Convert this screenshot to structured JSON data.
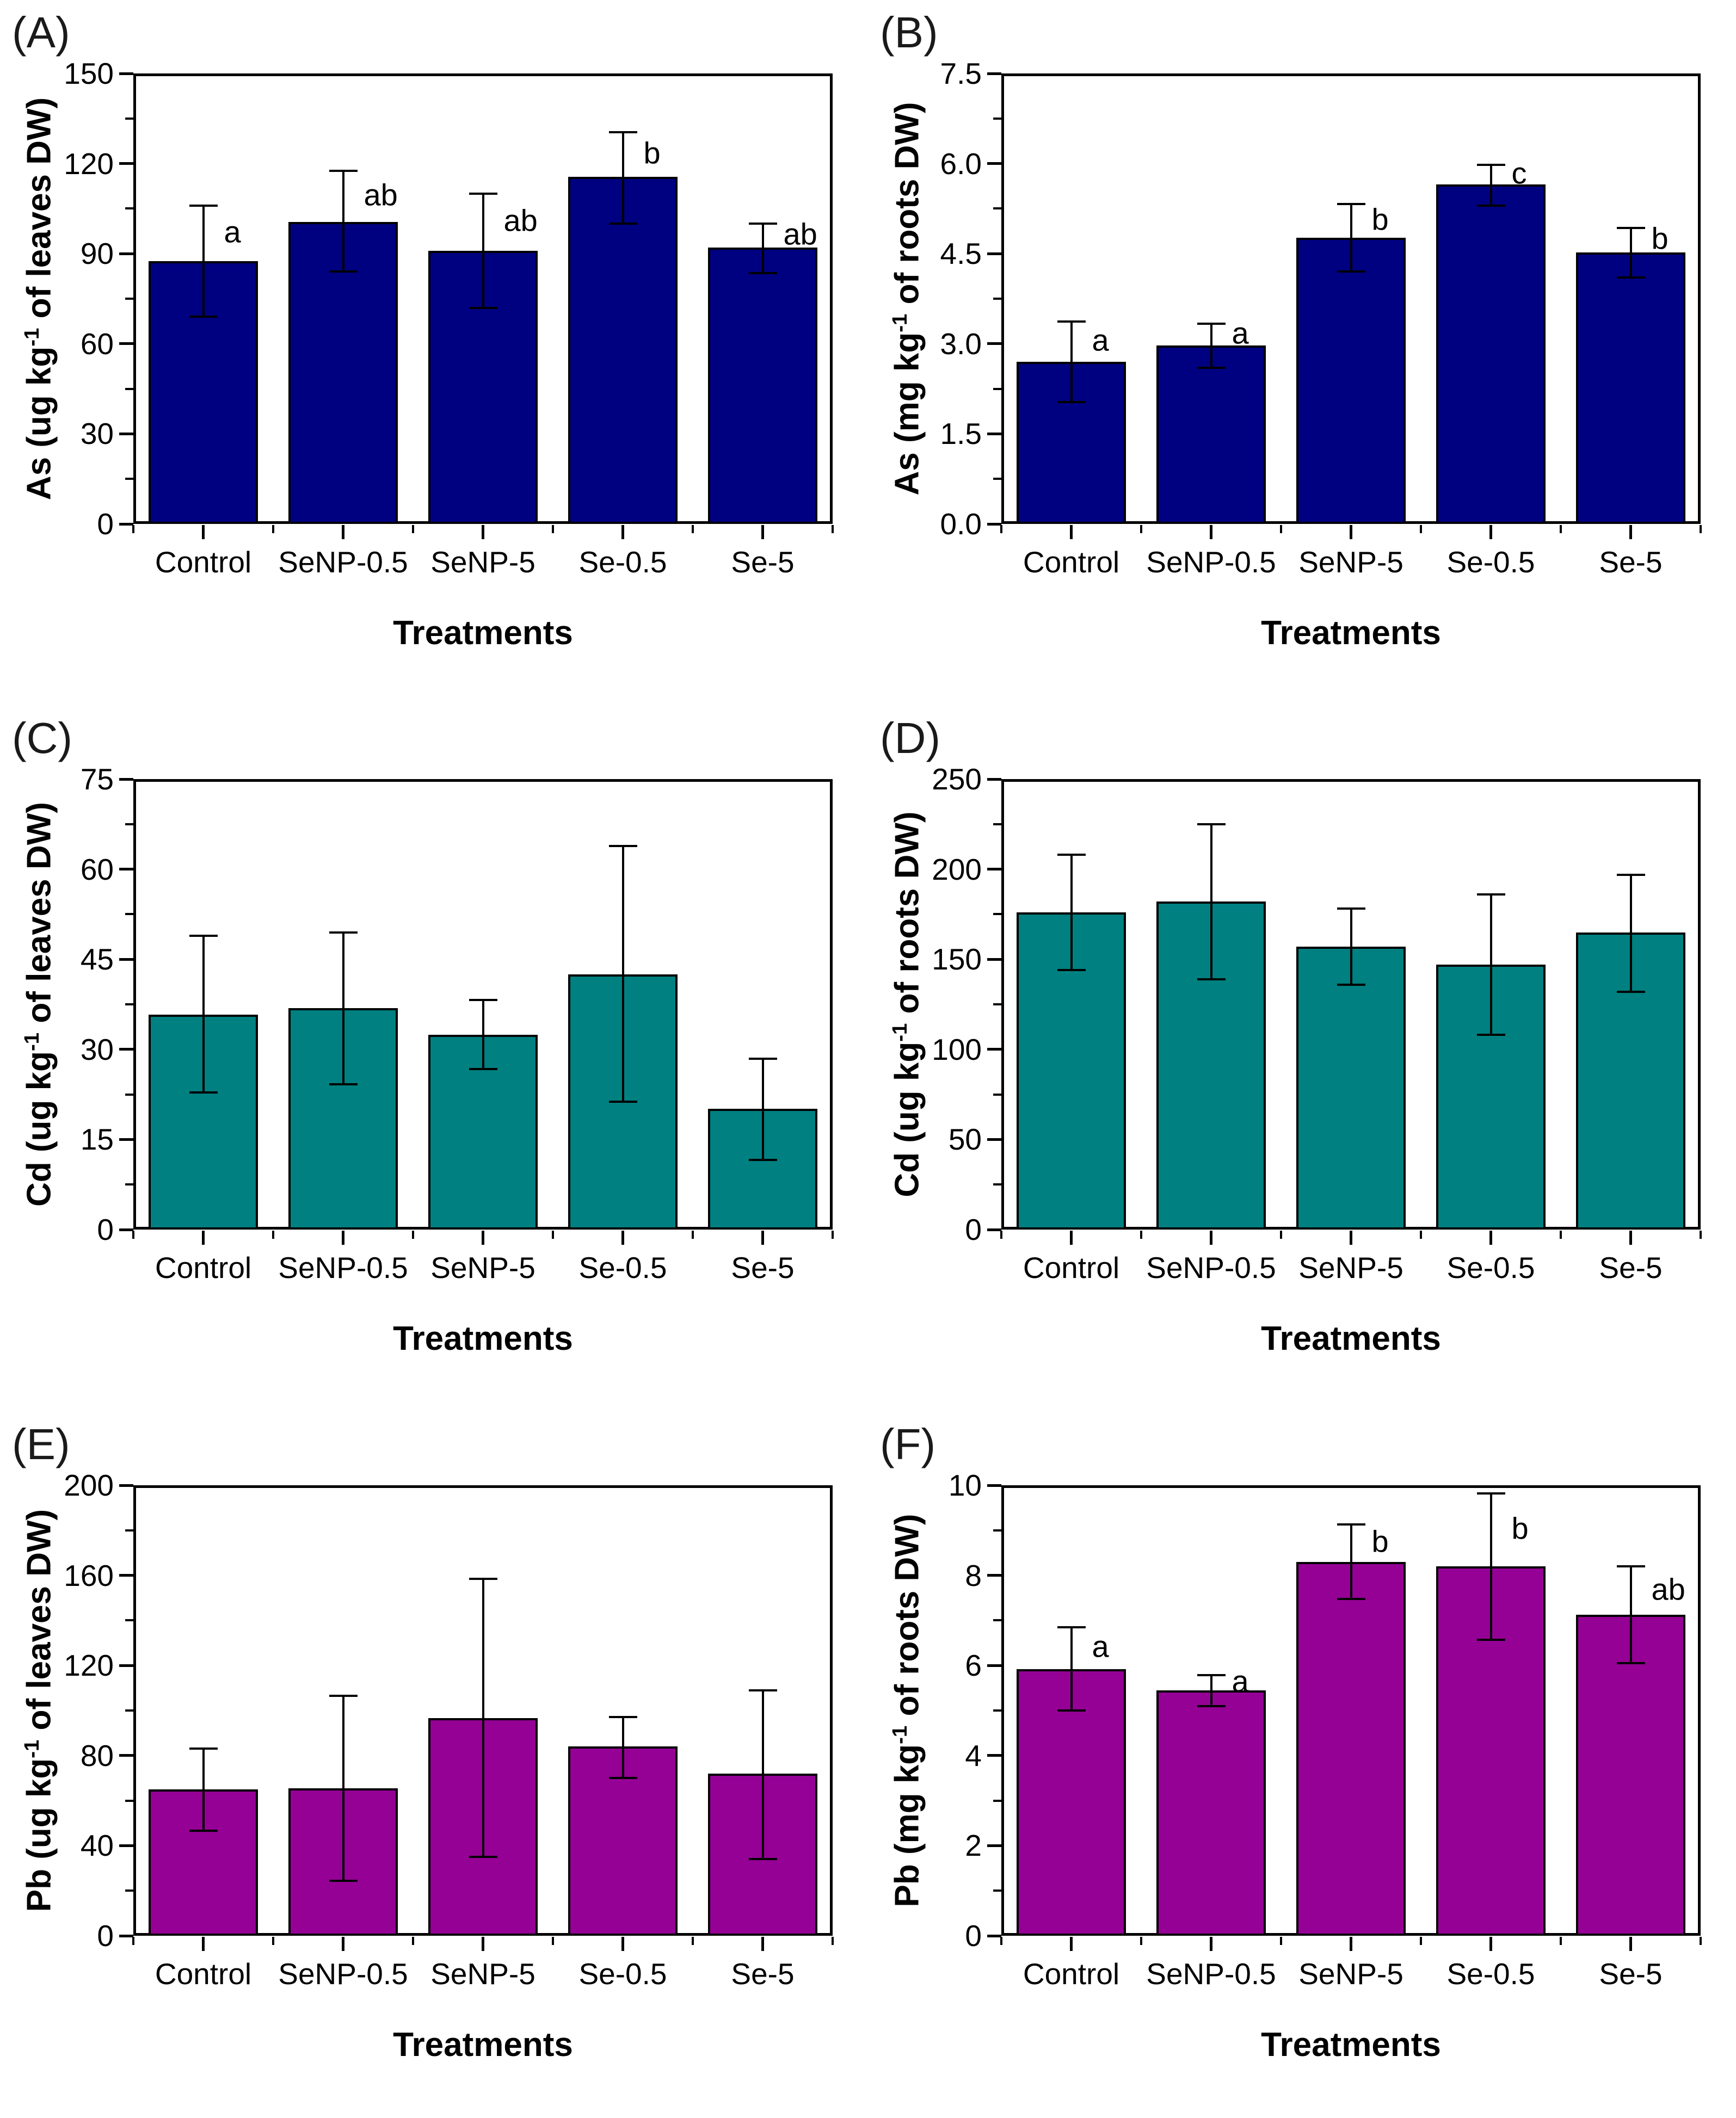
{
  "figure_title": "",
  "x_axis_title": "Treatments",
  "categories": [
    "Control",
    "SeNP-0.5",
    "SeNP-5",
    "Se-0.5",
    "Se-5"
  ],
  "chart_data": [
    {
      "type": "bar",
      "panel": "(A)",
      "ylabel": {
        "pre": "As (ug kg",
        "sup": "-1",
        "post": " of leaves DW)"
      },
      "xlabel": "Treatments",
      "bar_color": "#000180",
      "categories": [
        "Control",
        "SeNP-0.5",
        "SeNP-5",
        "Se-0.5",
        "Se-5"
      ],
      "values": [
        87.5,
        100.5,
        91,
        115.5,
        92
      ],
      "err_top": [
        106,
        117.5,
        110,
        130.5,
        100
      ],
      "err_bottom": [
        69,
        84,
        72,
        100,
        83.5
      ],
      "sig_letters": [
        "a",
        "ab",
        "ab",
        "b",
        "ab"
      ],
      "ylim": [
        0,
        150
      ],
      "ytick_labels": [
        "0",
        "30",
        "60",
        "90",
        "120",
        "150"
      ],
      "grid": "off",
      "legend": "none"
    },
    {
      "type": "bar",
      "panel": "(B)",
      "ylabel": {
        "pre": "As (mg kg",
        "sup": "-1",
        "post": " of roots DW)"
      },
      "xlabel": "Treatments",
      "bar_color": "#000180",
      "categories": [
        "Control",
        "SeNP-0.5",
        "SeNP-5",
        "Se-0.5",
        "Se-5"
      ],
      "values": [
        2.7,
        2.97,
        4.76,
        5.65,
        4.52
      ],
      "err_top": [
        3.37,
        3.33,
        5.33,
        5.98,
        4.93
      ],
      "err_bottom": [
        2.03,
        2.6,
        4.2,
        5.3,
        4.1
      ],
      "sig_letters": [
        "a",
        "a",
        "b",
        "c",
        "b"
      ],
      "ylim": [
        0,
        7.5
      ],
      "ytick_labels": [
        "0.0",
        "1.5",
        "3.0",
        "4.5",
        "6.0",
        "7.5"
      ],
      "grid": "off",
      "legend": "none"
    },
    {
      "type": "bar",
      "panel": "(C)",
      "ylabel": {
        "pre": "Cd (ug kg",
        "sup": "-1",
        "post": " of leaves DW)"
      },
      "xlabel": "Treatments",
      "bar_color": "#008080",
      "categories": [
        "Control",
        "SeNP-0.5",
        "SeNP-5",
        "Se-0.5",
        "Se-5"
      ],
      "values": [
        35.8,
        36.9,
        32.4,
        42.5,
        20.1
      ],
      "err_top": [
        48.9,
        49.5,
        38.2,
        63.9,
        28.4
      ],
      "err_bottom": [
        22.8,
        24.2,
        26.7,
        21.3,
        11.6
      ],
      "sig_letters": [
        "",
        "",
        "",
        "",
        ""
      ],
      "ylim": [
        0,
        75
      ],
      "ytick_labels": [
        "0",
        "15",
        "30",
        "45",
        "60",
        "75"
      ],
      "grid": "off",
      "legend": "none"
    },
    {
      "type": "bar",
      "panel": "(D)",
      "ylabel": {
        "pre": "Cd (ug kg",
        "sup": "-1",
        "post": " of roots DW)"
      },
      "xlabel": "Treatments",
      "bar_color": "#008080",
      "categories": [
        "Control",
        "SeNP-0.5",
        "SeNP-5",
        "Se-0.5",
        "Se-5"
      ],
      "values": [
        176,
        182,
        157,
        147,
        165
      ],
      "err_top": [
        208,
        225,
        178,
        186,
        197
      ],
      "err_bottom": [
        144,
        139,
        136,
        108,
        132
      ],
      "sig_letters": [
        "",
        "",
        "",
        "",
        ""
      ],
      "ylim": [
        0,
        250
      ],
      "ytick_labels": [
        "0",
        "50",
        "100",
        "150",
        "200",
        "250"
      ],
      "grid": "off",
      "legend": "none"
    },
    {
      "type": "bar",
      "panel": "(E)",
      "ylabel": {
        "pre": "Pb (ug kg",
        "sup": "-1",
        "post": " of leaves DW)"
      },
      "xlabel": "Treatments",
      "bar_color": "#950195",
      "categories": [
        "Control",
        "SeNP-0.5",
        "SeNP-5",
        "Se-0.5",
        "Se-5"
      ],
      "values": [
        65,
        65.5,
        96.5,
        84,
        72
      ],
      "err_top": [
        83,
        106.5,
        158.5,
        97,
        109
      ],
      "err_bottom": [
        46.5,
        24.5,
        35,
        70,
        34
      ],
      "sig_letters": [
        "",
        "",
        "",
        "",
        ""
      ],
      "ylim": [
        0,
        200
      ],
      "ytick_labels": [
        "0",
        "40",
        "80",
        "120",
        "160",
        "200"
      ],
      "grid": "off",
      "legend": "none"
    },
    {
      "type": "bar",
      "panel": "(F)",
      "ylabel": {
        "pre": "Pb (mg kg",
        "sup": "-1",
        "post": " of roots DW)"
      },
      "xlabel": "Treatments",
      "bar_color": "#950195",
      "categories": [
        "Control",
        "SeNP-0.5",
        "SeNP-5",
        "Se-0.5",
        "Se-5"
      ],
      "values": [
        5.92,
        5.45,
        8.3,
        8.2,
        7.12
      ],
      "err_top": [
        6.85,
        5.78,
        9.13,
        9.82,
        8.2
      ],
      "err_bottom": [
        5.0,
        5.1,
        7.47,
        6.57,
        6.05
      ],
      "sig_letters": [
        "a",
        "a",
        "b",
        "b",
        "ab"
      ],
      "ylim": [
        0,
        10
      ],
      "ytick_labels": [
        "0",
        "2",
        "4",
        "6",
        "8",
        "10"
      ],
      "grid": "off",
      "legend": "none"
    }
  ]
}
